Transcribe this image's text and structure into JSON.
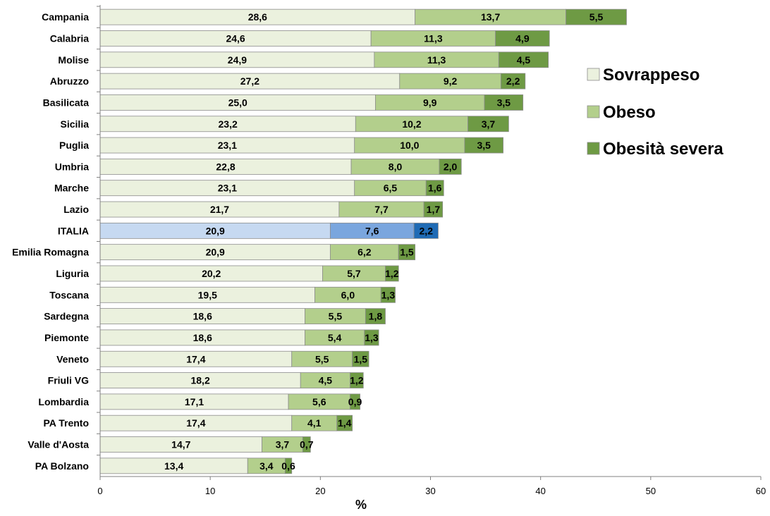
{
  "chart_data": {
    "type": "bar",
    "orientation": "horizontal",
    "stacked": true,
    "categories": [
      "Campania",
      "Calabria",
      "Molise",
      "Abruzzo",
      "Basilicata",
      "Sicilia",
      "Puglia",
      "Umbria",
      "Marche",
      "Lazio",
      "ITALIA",
      "Emilia Romagna",
      "Liguria",
      "Toscana",
      "Sardegna",
      "Piemonte",
      "Veneto",
      "Friuli VG",
      "Lombardia",
      "PA Trento",
      "Valle d'Aosta",
      "PA Bolzano"
    ],
    "series": [
      {
        "name": "Sovrappeso",
        "values": [
          28.6,
          24.6,
          24.9,
          27.2,
          25.0,
          23.2,
          23.1,
          22.8,
          23.1,
          21.7,
          20.9,
          20.9,
          20.2,
          19.5,
          18.6,
          18.6,
          17.4,
          18.2,
          17.1,
          17.4,
          14.7,
          13.4
        ],
        "labels": [
          "28,6",
          "24,6",
          "24,9",
          "27,2",
          "25,0",
          "23,2",
          "23,1",
          "22,8",
          "23,1",
          "21,7",
          "20,9",
          "20,9",
          "20,2",
          "19,5",
          "18,6",
          "18,6",
          "17,4",
          "18,2",
          "17,1",
          "17,4",
          "14,7",
          "13,4"
        ],
        "color": "#ebf1de",
        "highlight_color": "#c6d9f1"
      },
      {
        "name": "Obeso",
        "values": [
          13.7,
          11.3,
          11.3,
          9.2,
          9.9,
          10.2,
          10.0,
          8.0,
          6.5,
          7.7,
          7.6,
          6.2,
          5.7,
          6.0,
          5.5,
          5.4,
          5.5,
          4.5,
          5.6,
          4.1,
          3.7,
          3.4
        ],
        "labels": [
          "13,7",
          "11,3",
          "11,3",
          "9,2",
          "9,9",
          "10,2",
          "10,0",
          "8,0",
          "6,5",
          "7,7",
          "7,6",
          "6,2",
          "5,7",
          "6,0",
          "5,5",
          "5,4",
          "5,5",
          "4,5",
          "5,6",
          "4,1",
          "3,7",
          "3,4"
        ],
        "color": "#b3cf8c",
        "highlight_color": "#7aa6de"
      },
      {
        "name": "Obesità severa",
        "values": [
          5.5,
          4.9,
          4.5,
          2.2,
          3.5,
          3.7,
          3.5,
          2.0,
          1.6,
          1.7,
          2.2,
          1.5,
          1.2,
          1.3,
          1.8,
          1.3,
          1.5,
          1.2,
          0.9,
          1.4,
          0.7,
          0.6
        ],
        "labels": [
          "5,5",
          "4,9",
          "4,5",
          "2,2",
          "3,5",
          "3,7",
          "3,5",
          "2,0",
          "1,6",
          "1,7",
          "2,2",
          "1,5",
          "1,2",
          "1,3",
          "1,8",
          "1,3",
          "1,5",
          "1,2",
          "0,9",
          "1,4",
          "0,7",
          "0,6"
        ],
        "color": "#6e9a44",
        "highlight_color": "#1f6bb5"
      }
    ],
    "highlight_category": "ITALIA",
    "xlabel": "%",
    "xlim": [
      0,
      60
    ],
    "xticks": [
      0,
      10,
      20,
      30,
      40,
      50,
      60
    ],
    "grid": false,
    "legend_position": "top-right"
  }
}
